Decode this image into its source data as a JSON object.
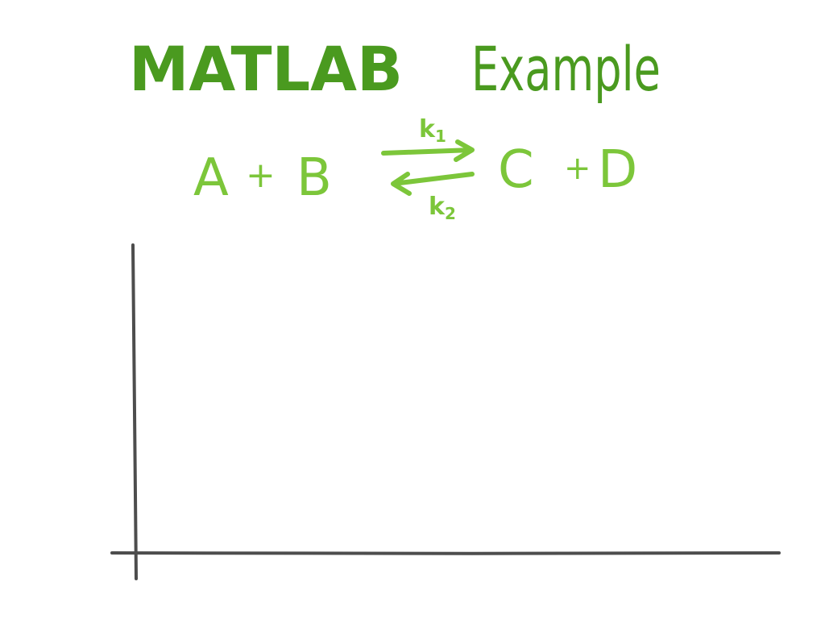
{
  "title": {
    "word1": "MATLAB",
    "word2": "Example"
  },
  "reaction": {
    "reactant_1": "A",
    "plus_left": "+",
    "reactant_2": "B",
    "product_1": "C",
    "plus_right": "+",
    "product_2": "D",
    "forward_rate": {
      "symbol": "k",
      "subscript": "1"
    },
    "reverse_rate": {
      "symbol": "k",
      "subscript": "2"
    }
  },
  "colors": {
    "title": "#4a9a1f",
    "reaction": "#7cc63a",
    "axes": "#4d4d4d",
    "background": "#ffffff"
  }
}
